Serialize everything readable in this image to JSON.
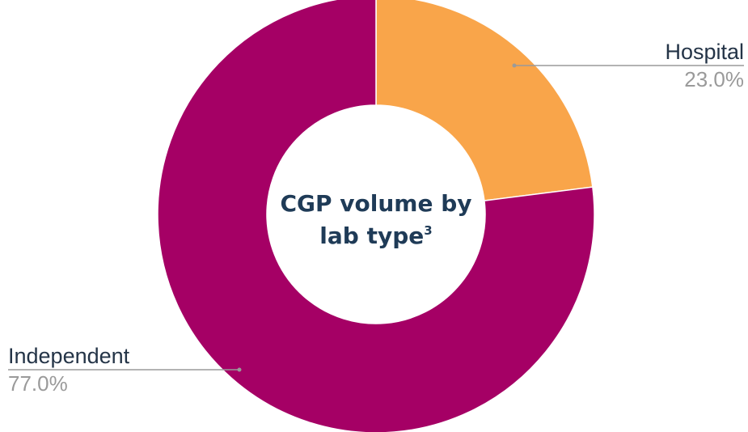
{
  "chart_data": {
    "type": "pie",
    "donut": true,
    "center_title": "CGP volume by",
    "center_title_line2": "lab type",
    "center_title_sup": "3",
    "categories": [
      "Hospital",
      "Independent"
    ],
    "values": [
      23.0,
      77.0
    ],
    "value_labels": [
      "23.0%",
      "77.0%"
    ],
    "colors": [
      "#f9a54a",
      "#a50065"
    ],
    "legend": "none"
  }
}
